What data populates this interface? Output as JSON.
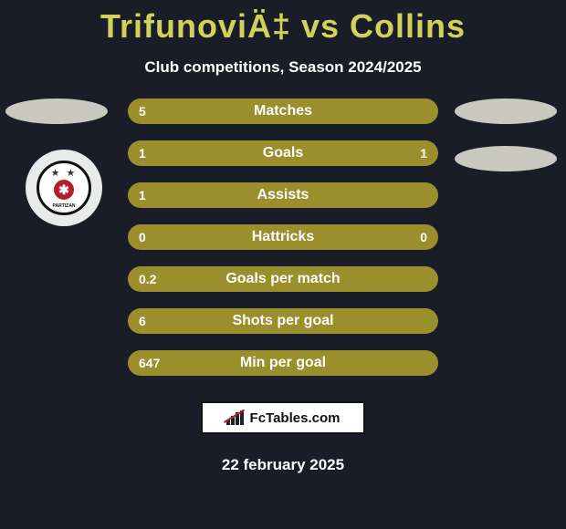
{
  "title": "TrifunoviÄ‡ vs Collins",
  "subtitle": "Club competitions, Season 2024/2025",
  "bars": [
    {
      "left": "5",
      "label": "Matches",
      "right": ""
    },
    {
      "left": "1",
      "label": "Goals",
      "right": "1"
    },
    {
      "left": "1",
      "label": "Assists",
      "right": ""
    },
    {
      "left": "0",
      "label": "Hattricks",
      "right": "0"
    },
    {
      "left": "0.2",
      "label": "Goals per match",
      "right": ""
    },
    {
      "left": "6",
      "label": "Shots per goal",
      "right": ""
    },
    {
      "left": "647",
      "label": "Min per goal",
      "right": ""
    }
  ],
  "bar_color": "#9b8e2c",
  "title_color": "#d0d35a",
  "background_color": "#1a1d28",
  "ellipse_color": "#c9c9c0",
  "badge_text": "FcTables.com",
  "date": "22 february 2025",
  "crest_text": "PARTIZAN"
}
